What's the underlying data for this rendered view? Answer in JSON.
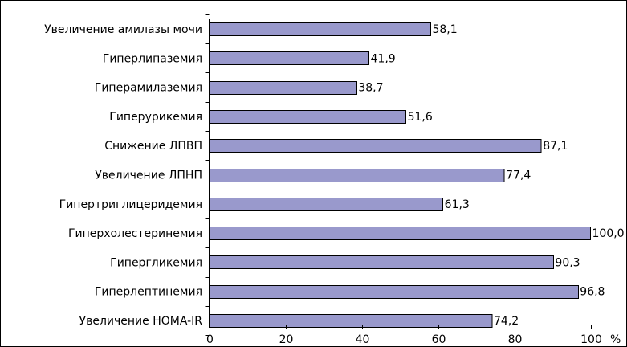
{
  "chart_data": {
    "type": "bar",
    "orientation": "horizontal",
    "categories": [
      "Увеличение амилазы мочи",
      "Гиперлипаземия",
      "Гиперамилаземия",
      "Гиперурикемия",
      "Снижение ЛПВП",
      "Увеличение ЛПНП",
      "Гипертриглицеридемия",
      "Гиперхолестеринемия",
      "Гипергликемия",
      "Гиперлептинемия",
      "Увеличение HOMA-IR"
    ],
    "values": [
      58.1,
      41.9,
      38.7,
      51.6,
      87.1,
      77.4,
      61.3,
      100.0,
      90.3,
      96.8,
      74.2
    ],
    "value_labels": [
      "58,1",
      "41,9",
      "38,7",
      "51,6",
      "87,1",
      "77,4",
      "61,3",
      "100,0",
      "90,3",
      "96,8",
      "74,2"
    ],
    "x_ticks": [
      0,
      20,
      40,
      60,
      80,
      100
    ],
    "x_tick_labels": [
      "0",
      "20",
      "40",
      "60",
      "80",
      "100"
    ],
    "x_unit": "%",
    "xlim": [
      0,
      100
    ],
    "title": "",
    "xlabel": "",
    "ylabel": "",
    "grid": false,
    "legend": "none",
    "colors": {
      "bar_fill": "#9999CC",
      "bar_stroke": "#000000",
      "text": "#000000",
      "frame": "#000000"
    }
  }
}
